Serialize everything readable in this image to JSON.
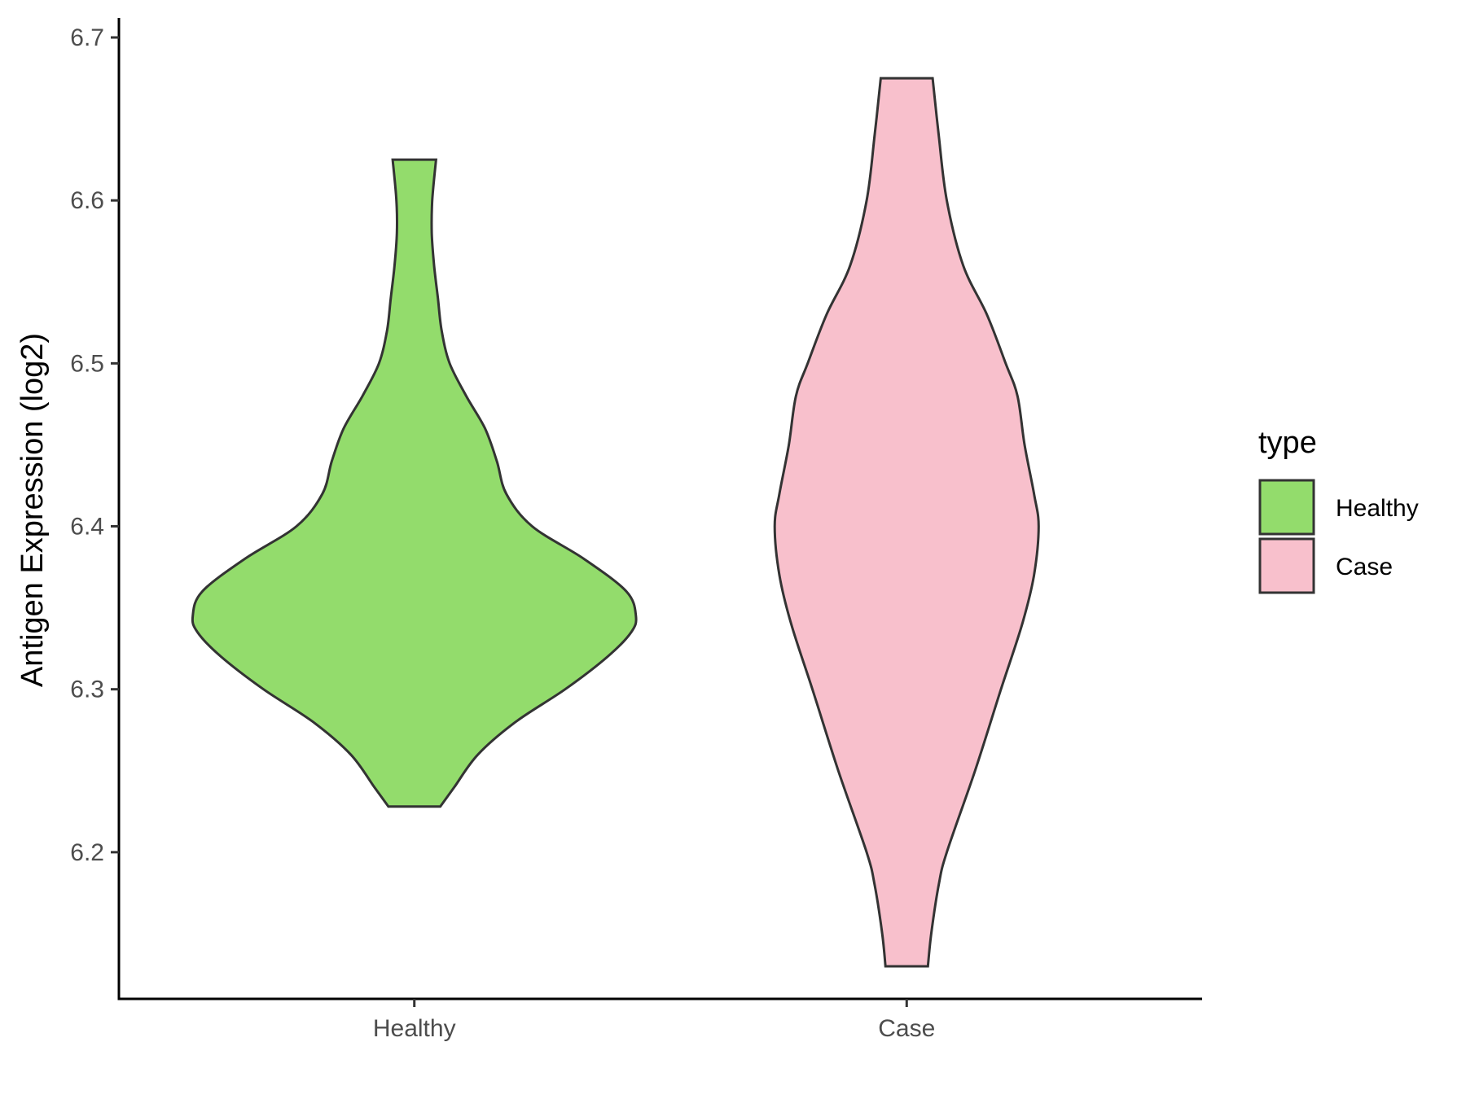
{
  "chart_data": {
    "type": "violin",
    "title": "",
    "xlabel": "",
    "ylabel": "Antigen Expression (log2)",
    "categories": [
      "Healthy",
      "Case"
    ],
    "ylim": [
      6.11,
      6.71
    ],
    "yticks": [
      "6.2",
      "6.3",
      "6.4",
      "6.5",
      "6.6",
      "6.7"
    ],
    "grid": false,
    "legend": {
      "title": "type",
      "position": "right",
      "entries": [
        {
          "label": "Healthy",
          "color": "#93DC6C"
        },
        {
          "label": "Case",
          "color": "#F8C0CC"
        }
      ]
    },
    "series": [
      {
        "name": "Healthy",
        "color": "#93DC6C",
        "min": 6.228,
        "max": 6.625,
        "density": [
          [
            6.228,
            0.055
          ],
          [
            6.24,
            0.085
          ],
          [
            6.26,
            0.135
          ],
          [
            6.28,
            0.215
          ],
          [
            6.3,
            0.32
          ],
          [
            6.32,
            0.41
          ],
          [
            6.335,
            0.46
          ],
          [
            6.345,
            0.47
          ],
          [
            6.36,
            0.45
          ],
          [
            6.38,
            0.36
          ],
          [
            6.4,
            0.25
          ],
          [
            6.42,
            0.195
          ],
          [
            6.44,
            0.175
          ],
          [
            6.46,
            0.15
          ],
          [
            6.48,
            0.11
          ],
          [
            6.5,
            0.075
          ],
          [
            6.52,
            0.058
          ],
          [
            6.54,
            0.05
          ],
          [
            6.56,
            0.042
          ],
          [
            6.58,
            0.037
          ],
          [
            6.6,
            0.038
          ],
          [
            6.625,
            0.046
          ]
        ]
      },
      {
        "name": "Case",
        "color": "#F8C0CC",
        "min": 6.13,
        "max": 6.675,
        "density": [
          [
            6.13,
            0.045
          ],
          [
            6.15,
            0.052
          ],
          [
            6.18,
            0.068
          ],
          [
            6.2,
            0.085
          ],
          [
            6.25,
            0.145
          ],
          [
            6.3,
            0.2
          ],
          [
            6.34,
            0.245
          ],
          [
            6.37,
            0.27
          ],
          [
            6.4,
            0.28
          ],
          [
            6.42,
            0.27
          ],
          [
            6.45,
            0.25
          ],
          [
            6.48,
            0.235
          ],
          [
            6.5,
            0.21
          ],
          [
            6.53,
            0.17
          ],
          [
            6.56,
            0.12
          ],
          [
            6.6,
            0.085
          ],
          [
            6.64,
            0.068
          ],
          [
            6.675,
            0.055
          ]
        ]
      }
    ]
  }
}
